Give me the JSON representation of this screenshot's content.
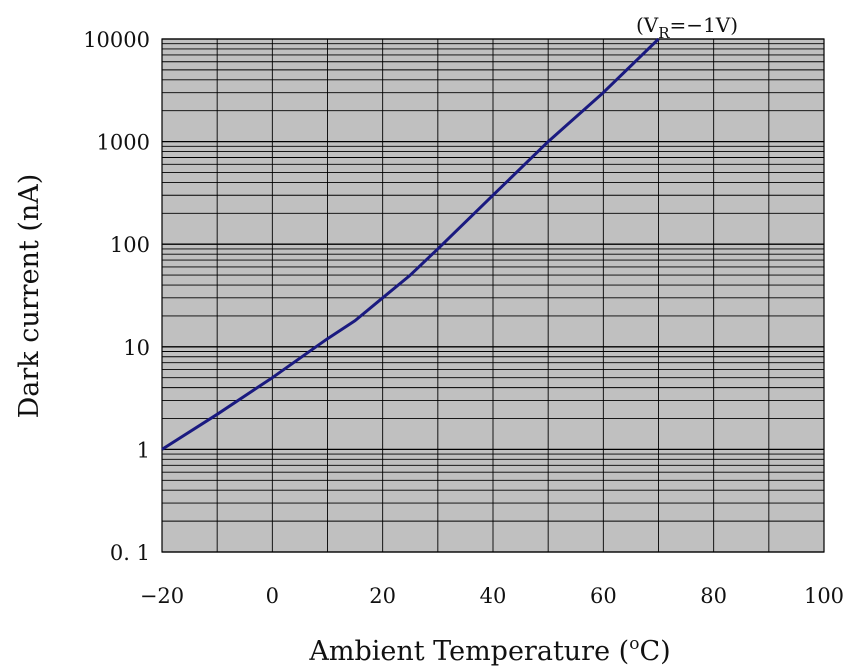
{
  "chart_data": {
    "type": "line",
    "xlabel": "Ambient Temperature (",
    "xlabel_unit_sup": "o",
    "xlabel_unit": "C)",
    "ylabel": "Dark current (nA)",
    "xlim": [
      -20,
      100
    ],
    "ylim": [
      0.1,
      10000
    ],
    "yscale": "log",
    "grid": true,
    "x_ticks": [
      -20,
      0,
      20,
      40,
      60,
      80,
      100
    ],
    "x_tick_labels": [
      "−20",
      "0",
      "20",
      "40",
      "60",
      "80",
      "100"
    ],
    "y_ticks": [
      0.1,
      1,
      10,
      100,
      1000,
      10000
    ],
    "y_tick_labels": [
      "0. 1",
      "1",
      "10",
      "100",
      "1000",
      "10000"
    ],
    "annotation": {
      "prefix": "(V",
      "subscript": "R",
      "suffix": "=−1V)",
      "x": 70,
      "y": 10000
    },
    "series": [
      {
        "color": "#1a1a80",
        "x": [
          -20,
          -10,
          0,
          10,
          15,
          20,
          25,
          30,
          40,
          50,
          60,
          70
        ],
        "y": [
          1,
          2.2,
          5,
          12,
          18,
          30,
          50,
          90,
          300,
          1000,
          3000,
          10000
        ]
      }
    ]
  },
  "colors": {
    "plot_background": "#c0c0c0",
    "grid_line": "#000000",
    "series_line": "#1a1a80"
  }
}
